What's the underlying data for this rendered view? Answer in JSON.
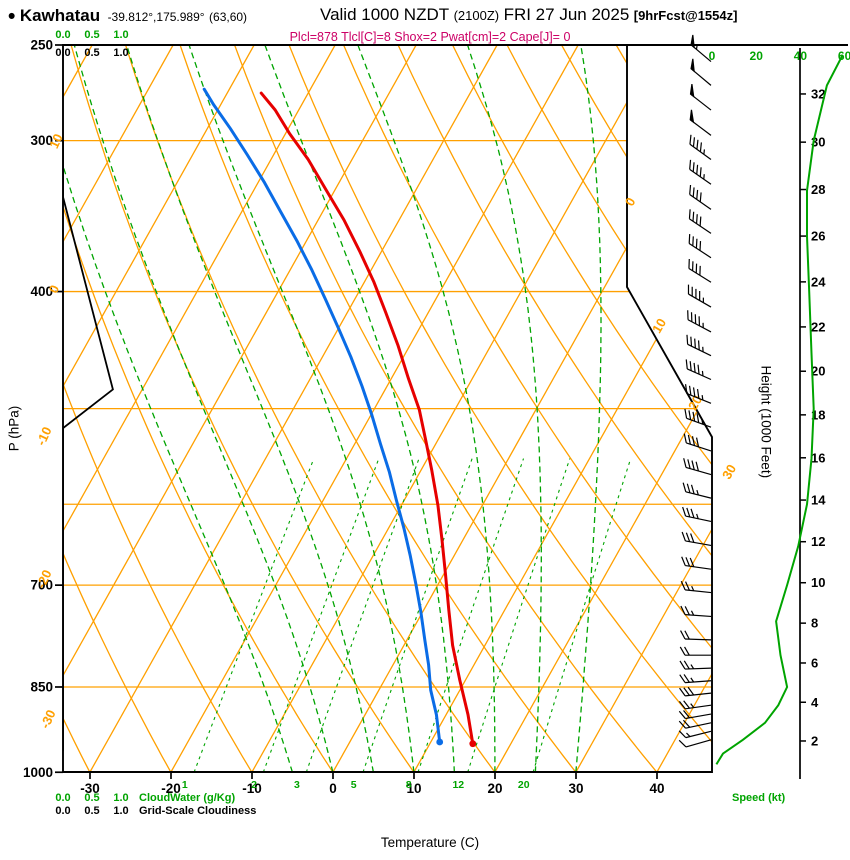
{
  "header": {
    "bullet": "•",
    "station": "Kawhatau",
    "coords": "-39.812°,175.989°",
    "grid_ref": "(63,60)",
    "valid_label": "Valid 1000 NZDT",
    "valid_zulu": "(2100Z)",
    "valid_date": "FRI 27 Jun 2025",
    "forecast_ref": "[9hrFcst@1554z]",
    "params": "Plcl=878 Tlcl[C]=8 Shox=2 Pwat[cm]=2 Cape[J]= 0"
  },
  "axes": {
    "pressure": {
      "label": "P (hPa)",
      "tick_labels": [
        "250",
        "300",
        "400",
        "700",
        "850",
        "1000"
      ],
      "tick_values": [
        250,
        300,
        400,
        700,
        850,
        1000
      ],
      "gridlines": [
        300,
        400,
        500,
        600,
        700,
        850
      ]
    },
    "temperature": {
      "label": "Temperature (C)",
      "ticks": [
        -30,
        -20,
        -10,
        0,
        10,
        20,
        30,
        40
      ]
    },
    "height": {
      "label": "Height (1000 Feet)",
      "ticks": [
        2,
        4,
        6,
        8,
        10,
        12,
        14,
        16,
        18,
        20,
        22,
        24,
        26,
        28,
        30,
        32
      ]
    },
    "speed": {
      "label": "Speed (kt)",
      "ticks": [
        0,
        20,
        40,
        60
      ]
    },
    "cloudwater": {
      "label": "CloudWater (g/Kg)",
      "ticks": [
        "0.0",
        "0.5",
        "1.0"
      ]
    },
    "cloudiness": {
      "label": "Grid-Scale Cloudiness",
      "ticks": [
        "0.0",
        "0.5",
        "1.0"
      ]
    }
  },
  "colors": {
    "grid_orange": "#FFA000",
    "green": "#00A400",
    "temp_red": "#E60000",
    "dewpoint_blue": "#0A6CE6",
    "params_magenta": "#CC0066",
    "black": "#000000"
  },
  "chart_data": {
    "type": "skewt",
    "xlabel": "Temperature (C)",
    "ylabel": "P (hPa)",
    "pressure_range": [
      250,
      1000
    ],
    "background": {
      "isotherms_c": {
        "min": -90,
        "max": 40,
        "step": 10
      },
      "dry_adiabats_theta_c": {
        "min": -40,
        "max": 120,
        "step": 10
      },
      "moist_adiabats_t1000_c": [
        -5,
        0,
        5,
        10,
        15,
        20,
        25,
        30
      ],
      "mixing_ratio_gkg": [
        1,
        2,
        3,
        5,
        8,
        12,
        20
      ]
    },
    "adiabat_labels_left_c": [
      10,
      0,
      -10,
      -20,
      -30
    ],
    "isotherm_labels_right_c": [
      0,
      10,
      20,
      30
    ],
    "temperature_curve_pT": [
      [
        947,
        15.3
      ],
      [
        896,
        12.7
      ],
      [
        839,
        9.3
      ],
      [
        785,
        6.0
      ],
      [
        734,
        3.1
      ],
      [
        687,
        0.3
      ],
      [
        642,
        -2.6
      ],
      [
        601,
        -5.5
      ],
      [
        562,
        -8.7
      ],
      [
        531,
        -11.5
      ],
      [
        501,
        -14.4
      ],
      [
        472,
        -17.9
      ],
      [
        443,
        -21.5
      ],
      [
        416,
        -25.3
      ],
      [
        393,
        -28.8
      ],
      [
        371,
        -32.6
      ],
      [
        349,
        -36.8
      ],
      [
        330,
        -41.0
      ],
      [
        311,
        -45.4
      ],
      [
        296,
        -49.5
      ],
      [
        283,
        -52.9
      ],
      [
        274,
        -55.8
      ]
    ],
    "dewpoint_curve_pT": [
      [
        944,
        11.1
      ],
      [
        896,
        8.8
      ],
      [
        855,
        6.4
      ],
      [
        815,
        4.4
      ],
      [
        777,
        2.2
      ],
      [
        737,
        -0.2
      ],
      [
        698,
        -2.8
      ],
      [
        662,
        -5.4
      ],
      [
        628,
        -8.1
      ],
      [
        595,
        -11.0
      ],
      [
        564,
        -13.8
      ],
      [
        535,
        -16.8
      ],
      [
        506,
        -19.9
      ],
      [
        479,
        -23.1
      ],
      [
        453,
        -26.5
      ],
      [
        429,
        -30.0
      ],
      [
        406,
        -33.6
      ],
      [
        384,
        -37.3
      ],
      [
        363,
        -41.2
      ],
      [
        344,
        -45.1
      ],
      [
        325,
        -49.2
      ],
      [
        308,
        -53.3
      ],
      [
        293,
        -57.2
      ],
      [
        280,
        -60.9
      ],
      [
        272,
        -63.1
      ]
    ],
    "wind_barbs_p_spd_dir": [
      [
        258,
        55,
        310
      ],
      [
        270,
        52,
        310
      ],
      [
        283,
        50,
        308
      ],
      [
        297,
        48,
        307
      ],
      [
        311,
        46,
        306
      ],
      [
        326,
        44,
        305
      ],
      [
        342,
        42,
        305
      ],
      [
        358,
        40,
        304
      ],
      [
        375,
        40,
        303
      ],
      [
        393,
        42,
        302
      ],
      [
        412,
        44,
        300
      ],
      [
        432,
        45,
        298
      ],
      [
        452,
        46,
        296
      ],
      [
        473,
        46,
        294
      ],
      [
        495,
        45,
        292
      ],
      [
        518,
        43,
        290
      ],
      [
        542,
        40,
        288
      ],
      [
        567,
        38,
        286
      ],
      [
        593,
        35,
        284
      ],
      [
        620,
        33,
        282
      ],
      [
        649,
        30,
        280
      ],
      [
        679,
        28,
        278
      ],
      [
        710,
        26,
        276
      ],
      [
        743,
        24,
        274
      ],
      [
        777,
        22,
        272
      ],
      [
        800,
        22,
        270
      ],
      [
        820,
        24,
        268
      ],
      [
        840,
        26,
        266
      ],
      [
        860,
        28,
        264
      ],
      [
        880,
        26,
        262
      ],
      [
        895,
        22,
        260
      ],
      [
        910,
        18,
        258
      ],
      [
        925,
        14,
        256
      ],
      [
        940,
        10,
        254
      ]
    ],
    "speed_profile_p_kt": [
      [
        255,
        59
      ],
      [
        270,
        52
      ],
      [
        300,
        46
      ],
      [
        330,
        43
      ],
      [
        360,
        43
      ],
      [
        400,
        44
      ],
      [
        450,
        45
      ],
      [
        500,
        46
      ],
      [
        550,
        45
      ],
      [
        600,
        43
      ],
      [
        650,
        39
      ],
      [
        700,
        34
      ],
      [
        750,
        29
      ],
      [
        800,
        31
      ],
      [
        850,
        34
      ],
      [
        880,
        30
      ],
      [
        910,
        24
      ],
      [
        940,
        14
      ],
      [
        965,
        5
      ],
      [
        985,
        2
      ]
    ],
    "cloudiness_profile_p_frac": [
      [
        300,
        0
      ],
      [
        334,
        0
      ],
      [
        482,
        0.86
      ],
      [
        519,
        0
      ],
      [
        960,
        0
      ]
    ]
  }
}
